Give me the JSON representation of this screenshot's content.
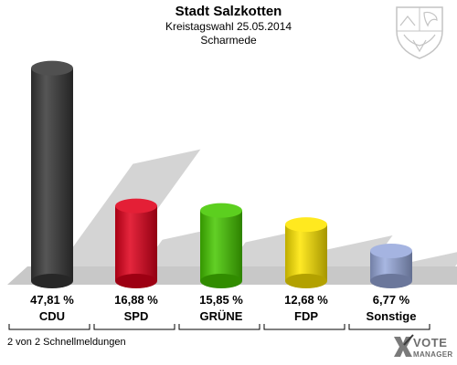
{
  "header": {
    "title": "Stadt Salzkotten",
    "subtitle": "Kreistagswahl 25.05.2014",
    "district": "Scharmede"
  },
  "footer": {
    "status": "2 von 2 Schnellmeldungen",
    "logo_line1": "VOTE",
    "logo_line2": "MANAGER"
  },
  "crest_icon": "nrw-coat-of-arms-icon",
  "logo_icon": "vote-manager-x-icon",
  "chart_data": {
    "type": "bar",
    "categories": [
      "CDU",
      "SPD",
      "GRÜNE",
      "FDP",
      "Sonstige"
    ],
    "values": [
      47.81,
      16.88,
      15.85,
      12.68,
      6.77
    ],
    "value_labels": [
      "47,81 %",
      "16,88 %",
      "15,85 %",
      "12,68 %",
      "6,77 %"
    ],
    "colors": [
      "#383838",
      "#e0001b",
      "#46c800",
      "#ffe600",
      "#99aadd"
    ],
    "ylim": [
      0,
      50
    ],
    "grid": false,
    "legend": "none"
  }
}
